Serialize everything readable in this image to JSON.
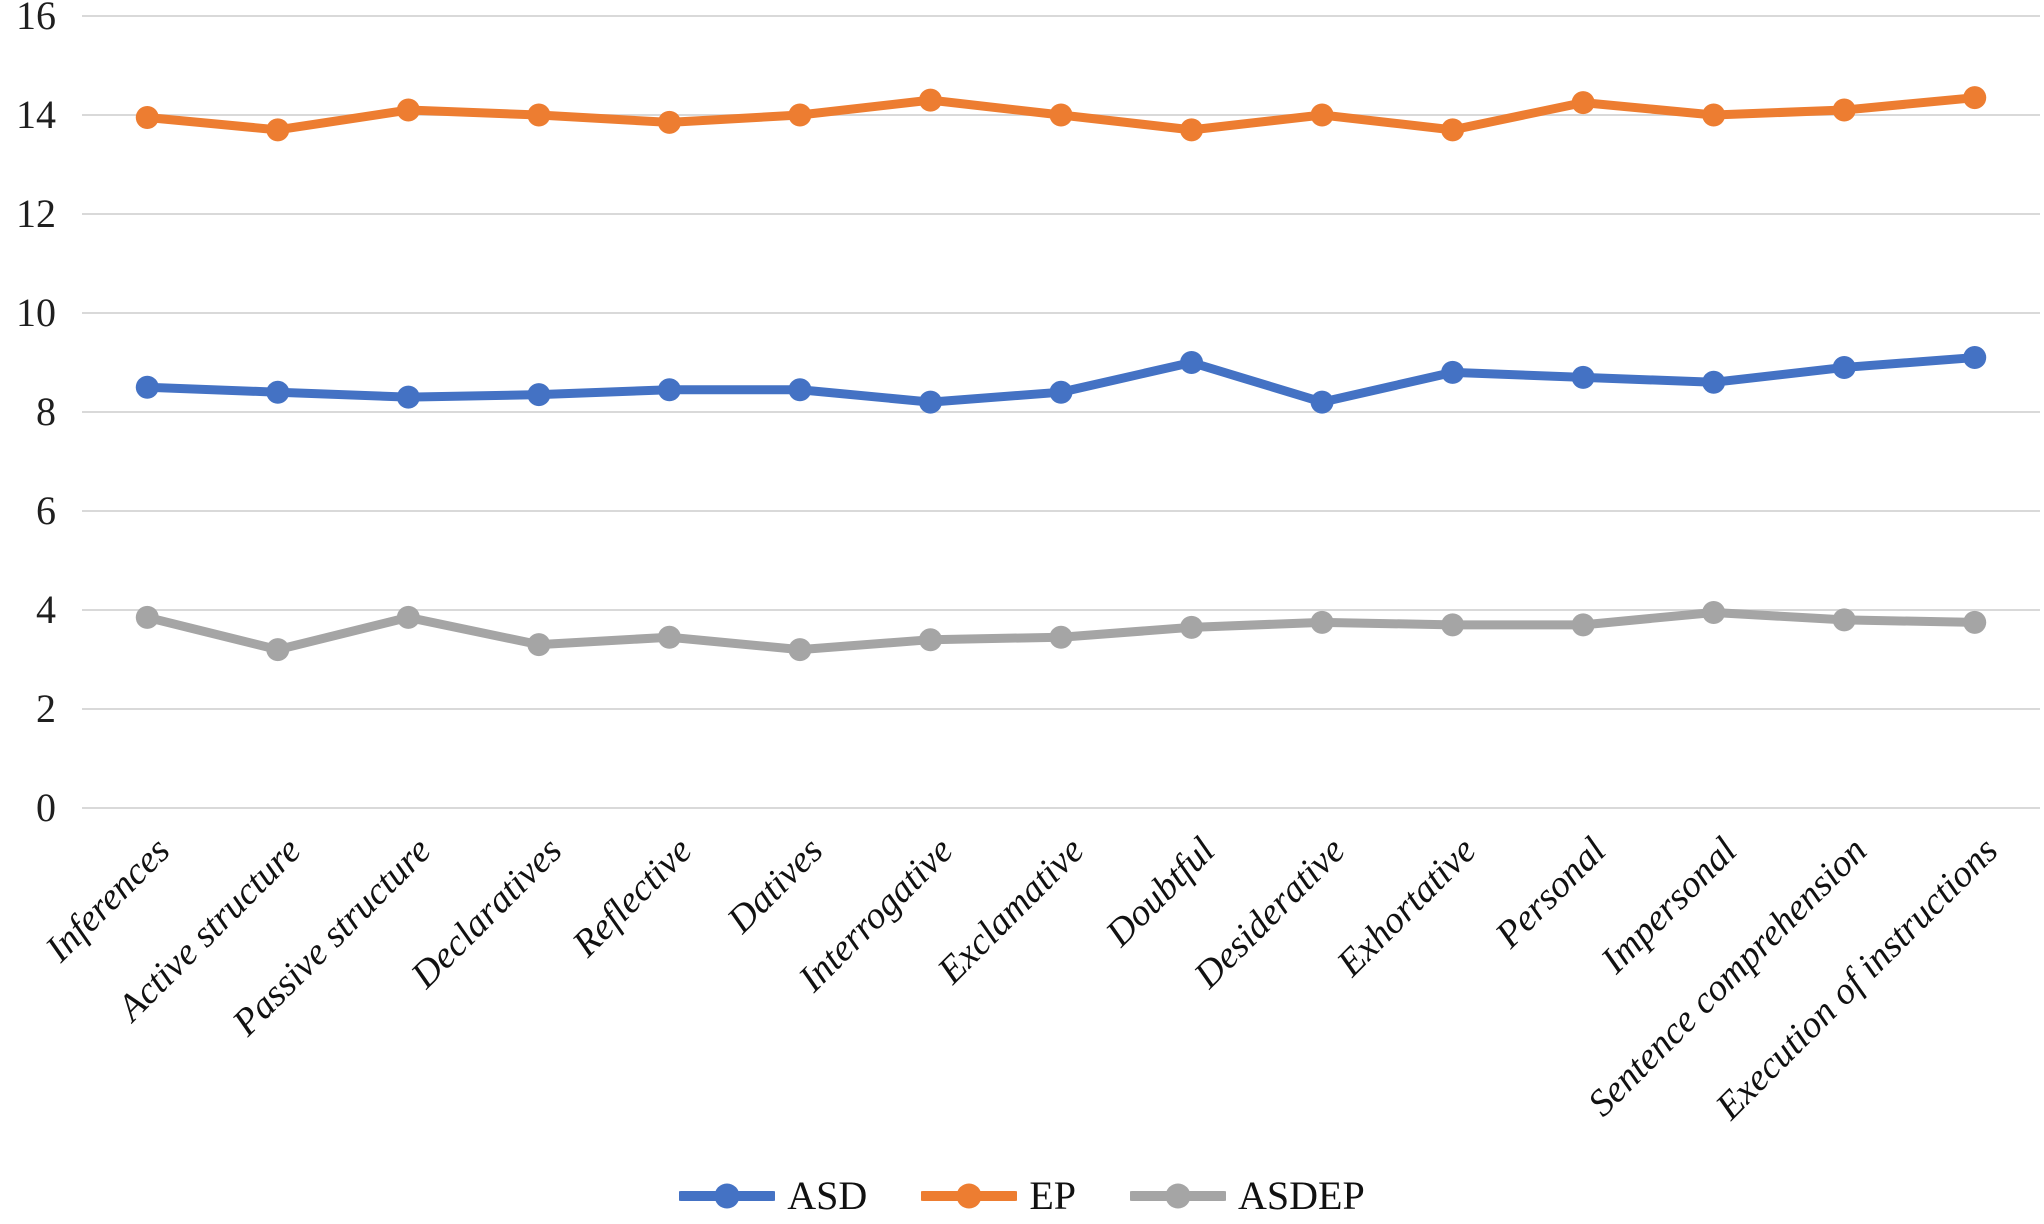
{
  "chart_data": {
    "type": "line",
    "title": "",
    "xlabel": "",
    "ylabel": "",
    "categories": [
      "Inferences",
      "Active structure",
      "Passive structure",
      "Declaratives",
      "Reflective",
      "Datives",
      "Interrogative",
      "Exclamative",
      "Doubtful",
      "Desiderative",
      "Exhortative",
      "Personal",
      "Impersonal",
      "Sentence comprehension",
      "Execution of instructions"
    ],
    "series": [
      {
        "name": "ASD",
        "color": "#4472C4",
        "values": [
          8.5,
          8.4,
          8.3,
          8.35,
          8.45,
          8.45,
          8.2,
          8.4,
          9.0,
          8.2,
          8.8,
          8.7,
          8.6,
          8.9,
          9.1
        ]
      },
      {
        "name": "EP",
        "color": "#ED7D31",
        "values": [
          13.95,
          13.7,
          14.1,
          14.0,
          13.85,
          14.0,
          14.3,
          14.0,
          13.7,
          14.0,
          13.7,
          14.25,
          14.0,
          14.1,
          14.35
        ]
      },
      {
        "name": "ASDEP",
        "color": "#A5A5A5",
        "values": [
          3.85,
          3.2,
          3.85,
          3.3,
          3.45,
          3.2,
          3.4,
          3.45,
          3.65,
          3.75,
          3.7,
          3.7,
          3.95,
          3.8,
          3.75
        ]
      }
    ],
    "ylim": [
      0,
      16
    ],
    "y_ticks": [
      0,
      2,
      4,
      6,
      8,
      10,
      12,
      14,
      16
    ],
    "grid": true,
    "legend_position": "bottom"
  },
  "colors": {
    "gridline": "#D9D9D9",
    "axis_text": "#1f1f1f"
  }
}
